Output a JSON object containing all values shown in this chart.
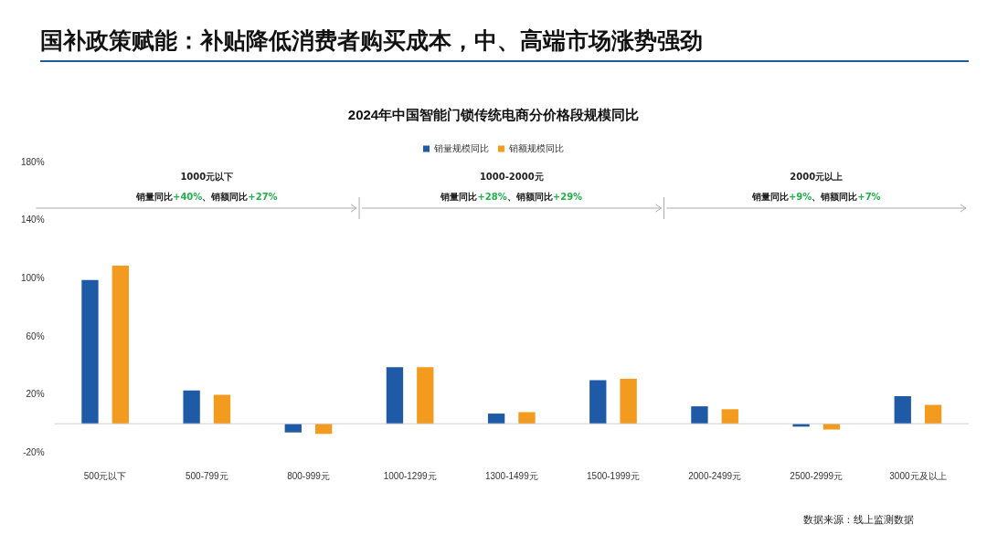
{
  "chart_data": {
    "type": "bar",
    "title": "国补政策赋能：补贴降低消费者购买成本，中、高端市场涨势强劲",
    "subtitle": "2024年中国智能门锁传统电商分价格段规模同比",
    "categories": [
      "500元以下",
      "500-799元",
      "800-999元",
      "1000-1299元",
      "1300-1499元",
      "1500-1999元",
      "2000-2499元",
      "2500-2999元",
      "3000元及以上"
    ],
    "series": [
      {
        "name": "销量规模同比",
        "color": "#1f5aa6",
        "values": [
          99,
          23,
          -6,
          39,
          7,
          30,
          12,
          -2,
          19
        ]
      },
      {
        "name": "销额规模同比",
        "color": "#f39b1f",
        "values": [
          109,
          20,
          -7,
          39,
          8,
          31,
          10,
          -4,
          13
        ]
      }
    ],
    "ylim": [
      -20,
      180
    ],
    "yticks": [
      {
        "value": -20,
        "label": "-20%"
      },
      {
        "value": 20,
        "label": "20%"
      },
      {
        "value": 60,
        "label": "60%"
      },
      {
        "value": 100,
        "label": "100%"
      },
      {
        "value": 140,
        "label": "140%"
      },
      {
        "value": 180,
        "label": "180%"
      }
    ],
    "legend": "top",
    "grid": false,
    "annotations": [
      "1000元以下",
      "销量同比+40%、销额同比+27%",
      "1000-2000元",
      "销量同比+28%、销额同比+29%",
      "2000元以上",
      "销量同比+9%、销额同比+7%",
      "数据来源：线上监测数据"
    ]
  }
}
